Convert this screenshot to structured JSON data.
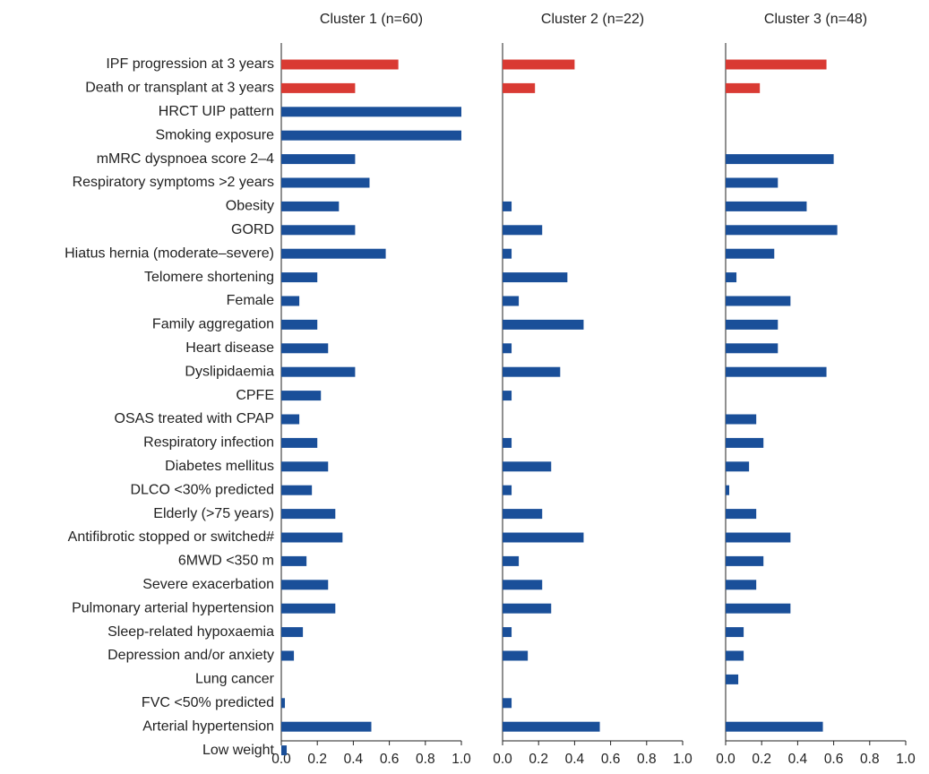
{
  "chart_data": [
    {
      "type": "bar",
      "orientation": "horizontal",
      "title": "Cluster 1 (n=60)",
      "categories": [
        "IPF progression at 3 years",
        "Death or transplant at 3 years",
        "HRCT UIP pattern",
        "Smoking exposure",
        "mMRC dyspnoea score 2–4",
        "Respiratory symptoms >2 years",
        "Obesity",
        "GORD",
        "Hiatus hernia (moderate–severe)",
        "Telomere shortening",
        "Female",
        "Family aggregation",
        "Heart disease",
        "Dyslipidaemia",
        "CPFE",
        "OSAS treated with CPAP",
        "Respiratory infection",
        "Diabetes mellitus",
        "DLCO <30% predicted",
        "Elderly (>75 years)",
        "Antifibrotic stopped or switched#",
        "6MWD <350 m",
        "Severe exacerbation",
        "Pulmonary arterial hypertension",
        "Sleep-related hypoxaemia",
        "Depression and/or anxiety",
        "Lung cancer",
        "FVC <50% predicted",
        "Arterial hypertension",
        "Low weight"
      ],
      "values": [
        0.65,
        0.41,
        1.0,
        1.0,
        0.41,
        0.49,
        0.32,
        0.41,
        0.58,
        0.2,
        0.1,
        0.2,
        0.26,
        0.41,
        0.22,
        0.1,
        0.2,
        0.26,
        0.17,
        0.3,
        0.34,
        0.14,
        0.26,
        0.3,
        0.12,
        0.07,
        0,
        0.02,
        0.5,
        0.03
      ],
      "colors": [
        "#d93a33",
        "#d93a33",
        "#1a4f99",
        "#1a4f99",
        "#1a4f99",
        "#1a4f99",
        "#1a4f99",
        "#1a4f99",
        "#1a4f99",
        "#1a4f99",
        "#1a4f99",
        "#1a4f99",
        "#1a4f99",
        "#1a4f99",
        "#1a4f99",
        "#1a4f99",
        "#1a4f99",
        "#1a4f99",
        "#1a4f99",
        "#1a4f99",
        "#1a4f99",
        "#1a4f99",
        "#1a4f99",
        "#1a4f99",
        "#1a4f99",
        "#1a4f99",
        "#1a4f99",
        "#1a4f99",
        "#1a4f99",
        "#1a4f99"
      ],
      "xlim": [
        0,
        1
      ],
      "xticks": [
        {
          "value": 0,
          "label": "0.0"
        },
        0.2,
        0.4,
        0.6,
        0.8,
        {
          "value": 1,
          "label": "1.0"
        }
      ]
    },
    {
      "type": "bar",
      "orientation": "horizontal",
      "title": "Cluster 2 (n=22)",
      "values": [
        0.4,
        0.18,
        0,
        0,
        0,
        0,
        0.05,
        0.22,
        0.05,
        0.36,
        0.09,
        0.45,
        0.05,
        0.32,
        0.05,
        0,
        0.05,
        0.27,
        0.05,
        0.22,
        0.45,
        0.09,
        0.22,
        0.27,
        0.05,
        0.14,
        0,
        0.05,
        0.54,
        0
      ],
      "colors": [
        "#d93a33",
        "#d93a33",
        "#1a4f99",
        "#1a4f99",
        "#1a4f99",
        "#1a4f99",
        "#1a4f99",
        "#1a4f99",
        "#1a4f99",
        "#1a4f99",
        "#1a4f99",
        "#1a4f99",
        "#1a4f99",
        "#1a4f99",
        "#1a4f99",
        "#1a4f99",
        "#1a4f99",
        "#1a4f99",
        "#1a4f99",
        "#1a4f99",
        "#1a4f99",
        "#1a4f99",
        "#1a4f99",
        "#1a4f99",
        "#1a4f99",
        "#1a4f99",
        "#1a4f99",
        "#1a4f99",
        "#1a4f99",
        "#1a4f99"
      ],
      "xlim": [
        0,
        1
      ],
      "xticks": [
        {
          "value": 0,
          "label": "0.0"
        },
        0.2,
        0.4,
        0.6,
        0.8,
        {
          "value": 1,
          "label": "1.0"
        }
      ]
    },
    {
      "type": "bar",
      "orientation": "horizontal",
      "title": "Cluster 3 (n=48)",
      "values": [
        0.56,
        0.19,
        0,
        0,
        0.6,
        0.29,
        0.45,
        0.62,
        0.27,
        0.06,
        0.36,
        0.29,
        0.29,
        0.56,
        0,
        0.17,
        0.21,
        0.13,
        0.02,
        0.17,
        0.36,
        0.21,
        0.17,
        0.36,
        0.1,
        0.1,
        0.07,
        0,
        0.54,
        0
      ],
      "colors": [
        "#d93a33",
        "#d93a33",
        "#1a4f99",
        "#1a4f99",
        "#1a4f99",
        "#1a4f99",
        "#1a4f99",
        "#1a4f99",
        "#1a4f99",
        "#1a4f99",
        "#1a4f99",
        "#1a4f99",
        "#1a4f99",
        "#1a4f99",
        "#1a4f99",
        "#1a4f99",
        "#1a4f99",
        "#1a4f99",
        "#1a4f99",
        "#1a4f99",
        "#1a4f99",
        "#1a4f99",
        "#1a4f99",
        "#1a4f99",
        "#1a4f99",
        "#1a4f99",
        "#1a4f99",
        "#1a4f99",
        "#1a4f99",
        "#1a4f99"
      ],
      "xlim": [
        0,
        1
      ],
      "xticks": [
        {
          "value": 0,
          "label": "0.0"
        },
        0.2,
        0.4,
        0.6,
        0.8,
        {
          "value": 1,
          "label": "1.0"
        }
      ]
    }
  ]
}
